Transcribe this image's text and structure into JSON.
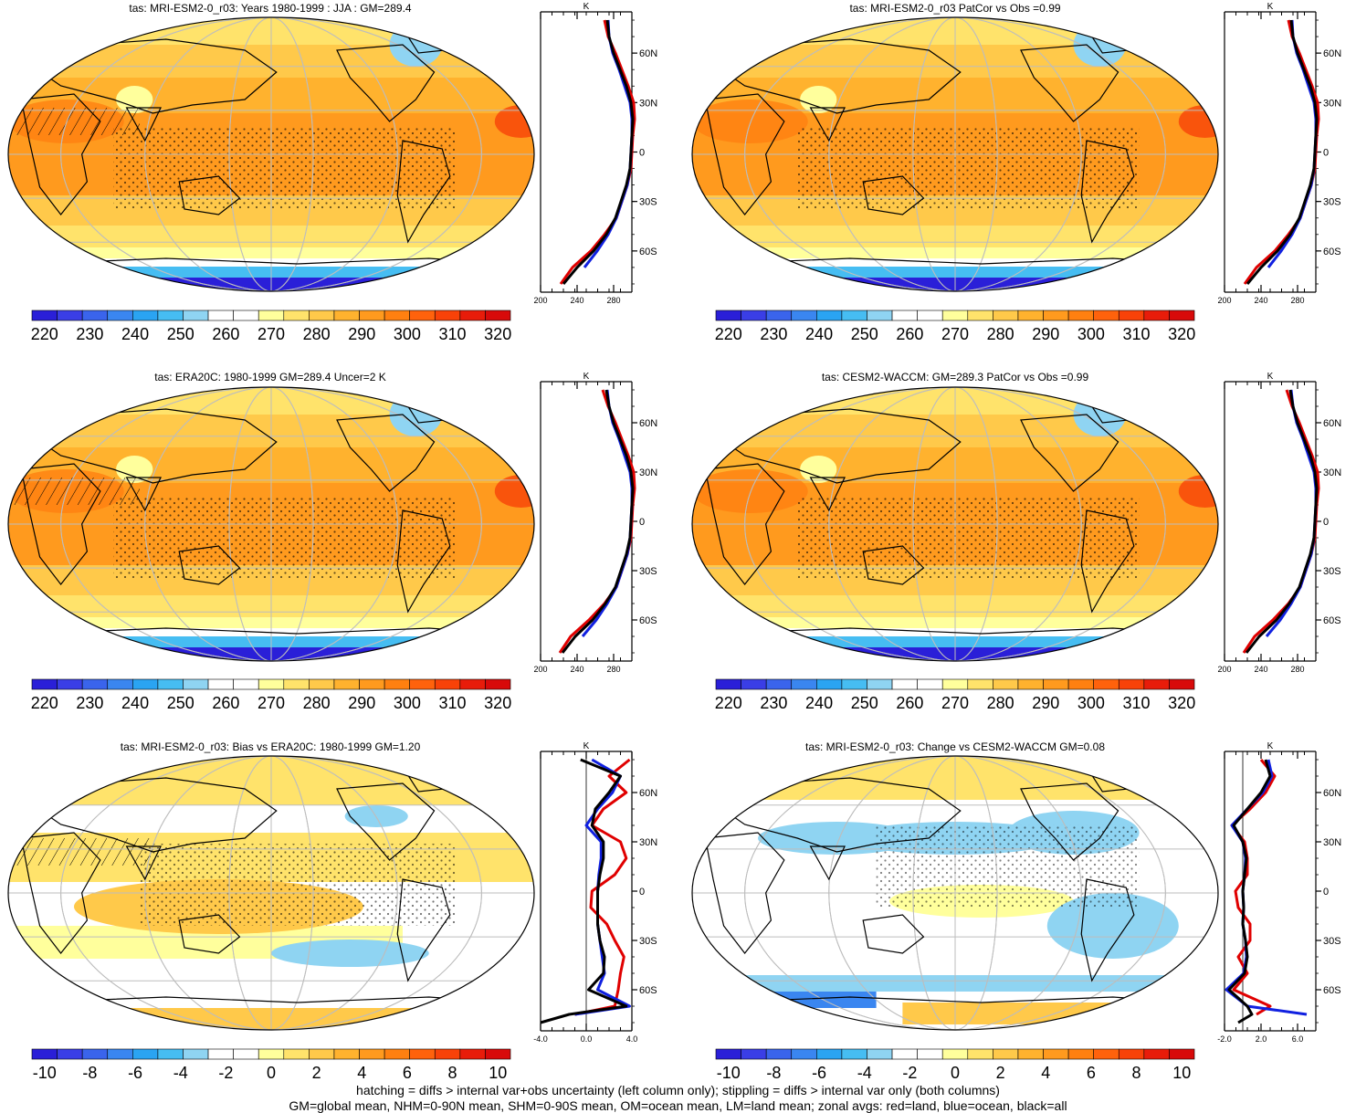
{
  "colors": {
    "abs_palette": [
      "#2a1fd8",
      "#3a3ee6",
      "#3a64ec",
      "#3a86f0",
      "#2aa4f2",
      "#46bdf2",
      "#8fd4f2",
      "#ffffff",
      "#ffffff",
      "#ffff9c",
      "#ffe36b",
      "#ffc94a",
      "#ffb22e",
      "#ff9a1e",
      "#ff8010",
      "#ff620c",
      "#f84208",
      "#e81c0a",
      "#d80a0a"
    ],
    "diff_palette": [
      "#2a1fd8",
      "#3a3ee6",
      "#3a64ec",
      "#3a86f0",
      "#2aa4f2",
      "#46bdf2",
      "#8fd4f2",
      "#ffffff",
      "#ffffff",
      "#ffff9c",
      "#ffe36b",
      "#ffc94a",
      "#ffb22e",
      "#ff9a1e",
      "#ff8010",
      "#ff620c",
      "#f84208",
      "#e81c0a",
      "#d80a0a"
    ],
    "land_line": "#e00000",
    "ocean_line": "#1020e0",
    "all_line": "#000000"
  },
  "panels": {
    "p1": {
      "title": "tas: MRI-ESM2-0_r03: Years 1980-1999 : JJA : GM=289.4"
    },
    "p2": {
      "title": "tas: MRI-ESM2-0_r03 PatCor vs Obs =0.99"
    },
    "p3": {
      "title": "tas: ERA20C: 1980-1999 GM=289.4 Uncer=2 K"
    },
    "p4": {
      "title": "tas: CESM2-WACCM: GM=289.3 PatCor vs Obs =0.99"
    },
    "p5": {
      "title": "tas: MRI-ESM2-0_r03: Bias vs ERA20C: 1980-1999 GM=1.20"
    },
    "p6": {
      "title": "tas: MRI-ESM2-0_r03: Change vs CESM2-WACCM GM=0.08"
    }
  },
  "colorbars": {
    "abs_labels": [
      "220",
      "230",
      "240",
      "250",
      "260",
      "270",
      "280",
      "290",
      "300",
      "310",
      "320"
    ],
    "diff_labels": [
      "-10",
      "-8",
      "-6",
      "-4",
      "-2",
      "0",
      "2",
      "4",
      "6",
      "8",
      "10"
    ]
  },
  "zonal": {
    "unit": "K",
    "lat_labels": [
      "60N",
      "30N",
      "0",
      "30S",
      "60S"
    ],
    "abs_ticks": [
      "200",
      "240",
      "280"
    ],
    "bias_ticks": [
      "-4.0",
      "0.0",
      "4.0"
    ],
    "change_ticks": [
      "-2.0",
      "2.0",
      "6.0"
    ]
  },
  "chart_data": [
    {
      "type": "line",
      "title": "K",
      "panel": "zonal mean tas, MRI-ESM2-0_r03 JJA",
      "y_lat": [
        -80,
        -70,
        -60,
        -50,
        -40,
        -30,
        -20,
        -10,
        0,
        10,
        20,
        30,
        40,
        50,
        60,
        70,
        80
      ],
      "series": [
        {
          "name": "all",
          "values": [
            225,
            240,
            258,
            272,
            282,
            288,
            294,
            298,
            299,
            300,
            301,
            299,
            294,
            287,
            280,
            275,
            273
          ]
        },
        {
          "name": "land",
          "values": [
            222,
            235,
            255,
            270,
            283,
            289,
            295,
            299,
            300,
            301,
            303,
            302,
            296,
            289,
            282,
            274,
            270
          ]
        },
        {
          "name": "ocean",
          "values": [
            null,
            248,
            262,
            274,
            283,
            289,
            295,
            298,
            299,
            300,
            300,
            298,
            292,
            286,
            279,
            275,
            274
          ]
        }
      ],
      "xlim": [
        200,
        300
      ]
    },
    {
      "type": "line",
      "title": "K",
      "panel": "zonal mean tas, ERA20C",
      "y_lat": [
        -80,
        -70,
        -60,
        -50,
        -40,
        -30,
        -20,
        -10,
        0,
        10,
        20,
        30,
        40,
        50,
        60,
        70,
        80
      ],
      "series": [
        {
          "name": "all",
          "values": [
            224,
            238,
            257,
            271,
            282,
            288,
            294,
            298,
            299,
            300,
            301,
            299,
            294,
            287,
            280,
            275,
            272
          ]
        },
        {
          "name": "land",
          "values": [
            221,
            233,
            253,
            270,
            283,
            289,
            295,
            299,
            300,
            301,
            303,
            302,
            296,
            289,
            282,
            274,
            268
          ]
        },
        {
          "name": "ocean",
          "values": [
            null,
            246,
            261,
            273,
            283,
            289,
            295,
            298,
            299,
            300,
            300,
            298,
            292,
            286,
            279,
            275,
            273
          ]
        }
      ],
      "xlim": [
        200,
        300
      ]
    },
    {
      "type": "line",
      "title": "K",
      "panel": "zonal mean bias vs ERA20C",
      "y_lat": [
        -80,
        -75,
        -70,
        -60,
        -50,
        -40,
        -30,
        -20,
        -10,
        0,
        10,
        20,
        30,
        40,
        50,
        60,
        70,
        80
      ],
      "series": [
        {
          "name": "all",
          "values": [
            -4.0,
            -1.5,
            3.5,
            0.2,
            1.5,
            1.6,
            1.2,
            1.0,
            1.0,
            1.0,
            1.2,
            1.5,
            1.5,
            0.5,
            0.8,
            2.0,
            3.0,
            -0.5
          ]
        },
        {
          "name": "land",
          "values": [
            null,
            -1.0,
            2.5,
            2.8,
            3.0,
            3.3,
            2.5,
            1.8,
            0.4,
            0.5,
            2.5,
            3.5,
            3.0,
            0.5,
            1.5,
            3.5,
            2.0,
            3.8
          ]
        },
        {
          "name": "ocean",
          "values": [
            null,
            -1.0,
            3.8,
            1.0,
            1.6,
            1.4,
            1.2,
            1.0,
            1.0,
            1.0,
            1.1,
            1.3,
            1.3,
            0.0,
            1.0,
            2.3,
            3.0,
            0.5
          ]
        }
      ],
      "xlim": [
        -4,
        4
      ]
    },
    {
      "type": "line",
      "title": "K",
      "panel": "zonal mean change vs CESM2-WACCM",
      "y_lat": [
        -80,
        -75,
        -70,
        -60,
        -50,
        -40,
        -30,
        -20,
        -10,
        0,
        10,
        20,
        30,
        40,
        50,
        60,
        70,
        80
      ],
      "series": [
        {
          "name": "all",
          "values": [
            -0.5,
            1.0,
            0.5,
            -1.5,
            0.2,
            0.5,
            0.3,
            0.0,
            0.1,
            0.0,
            0.2,
            0.4,
            0.0,
            -1.0,
            0.5,
            2.0,
            3.0,
            2.5
          ]
        },
        {
          "name": "land",
          "values": [
            null,
            1.5,
            3.0,
            -1.0,
            0.5,
            -0.5,
            0.8,
            0.8,
            -0.5,
            -0.8,
            0.5,
            0.5,
            0.2,
            -1.2,
            0.8,
            2.5,
            3.5,
            2.0
          ]
        },
        {
          "name": "ocean",
          "values": [
            null,
            7.0,
            0.5,
            -1.8,
            0.1,
            0.4,
            0.3,
            0.0,
            0.1,
            0.0,
            0.2,
            0.3,
            0.0,
            -1.2,
            0.5,
            2.2,
            3.2,
            2.8
          ]
        }
      ],
      "xlim": [
        -2,
        8
      ]
    }
  ],
  "footer": {
    "line1": "hatching = diffs > internal var+obs uncertainty (left column only); stippling = diffs > internal var only (both columns)",
    "line2": "GM=global mean, NHM=0-90N mean, SHM=0-90S mean, OM=ocean mean, LM=land mean; zonal avgs: red=land, blue=ocean, black=all"
  }
}
